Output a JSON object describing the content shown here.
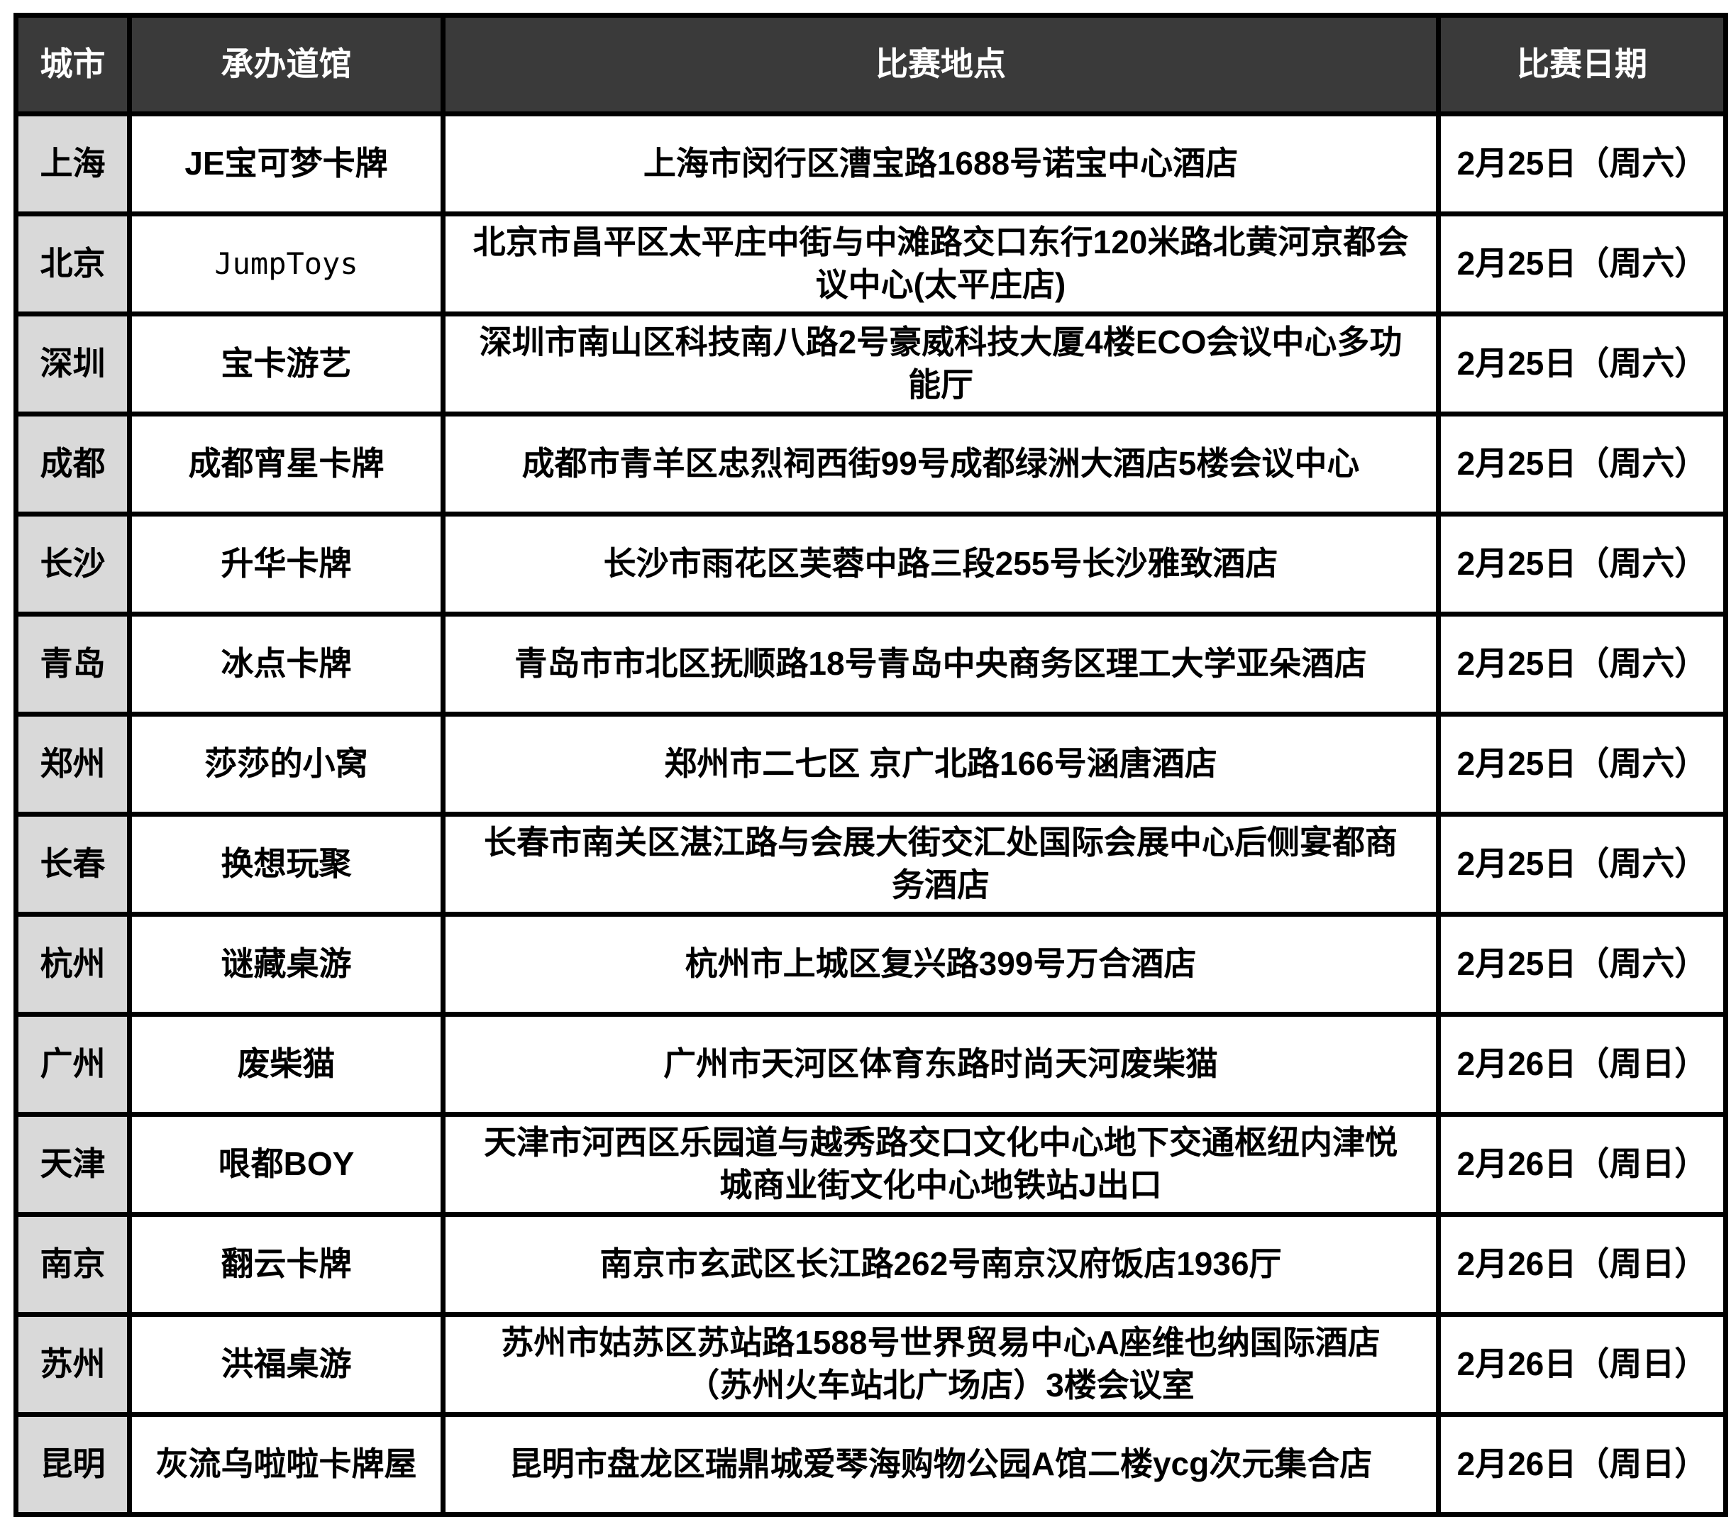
{
  "table": {
    "headers": {
      "city": "城市",
      "gym": "承办道馆",
      "location": "比赛地点",
      "date": "比赛日期"
    },
    "rows": [
      {
        "city": "上海",
        "gym": "JE宝可梦卡牌",
        "location": "上海市闵行区漕宝路1688号诺宝中心酒店",
        "date": "2月25日（周六）"
      },
      {
        "city": "北京",
        "gym": "JumpToys",
        "location": "北京市昌平区太平庄中街与中滩路交口东行120米路北黄河京都会议中心(太平庄店)",
        "date": "2月25日（周六）"
      },
      {
        "city": "深圳",
        "gym": "宝卡游艺",
        "location": "深圳市南山区科技南八路2号豪威科技大厦4楼ECO会议中心多功能厅",
        "date": "2月25日（周六）"
      },
      {
        "city": "成都",
        "gym": "成都宵星卡牌",
        "location": "成都市青羊区忠烈祠西街99号成都绿洲大酒店5楼会议中心",
        "date": "2月25日（周六）"
      },
      {
        "city": "长沙",
        "gym": "升华卡牌",
        "location": "长沙市雨花区芙蓉中路三段255号长沙雅致酒店",
        "date": "2月25日（周六）"
      },
      {
        "city": "青岛",
        "gym": "冰点卡牌",
        "location": "青岛市市北区抚顺路18号青岛中央商务区理工大学亚朵酒店",
        "date": "2月25日（周六）"
      },
      {
        "city": "郑州",
        "gym": "莎莎的小窝",
        "location": "郑州市二七区 京广北路166号涵唐酒店",
        "date": "2月25日（周六）"
      },
      {
        "city": "长春",
        "gym": "换想玩聚",
        "location": "长春市南关区湛江路与会展大街交汇处国际会展中心后侧宴都商务酒店",
        "date": "2月25日（周六）"
      },
      {
        "city": "杭州",
        "gym": "谜藏桌游",
        "location": "杭州市上城区复兴路399号万合酒店",
        "date": "2月25日（周六）"
      },
      {
        "city": "广州",
        "gym": "废柴猫",
        "location": "广州市天河区体育东路时尚天河废柴猫",
        "date": "2月26日（周日）"
      },
      {
        "city": "天津",
        "gym": "哏都BOY",
        "location": "天津市河西区乐园道与越秀路交口文化中心地下交通枢纽内津悦城商业街文化中心地铁站J出口",
        "date": "2月26日（周日）"
      },
      {
        "city": "南京",
        "gym": "翻云卡牌",
        "location": "南京市玄武区长江路262号南京汉府饭店1936厅",
        "date": "2月26日（周日）"
      },
      {
        "city": "苏州",
        "gym": "洪福桌游",
        "location": "苏州市姑苏区苏站路1588号世界贸易中心A座维也纳国际酒店（苏州火车站北广场店）3楼会议室",
        "date": "2月26日（周日）"
      },
      {
        "city": "昆明",
        "gym": "灰流乌啦啦卡牌屋",
        "location": "昆明市盘龙区瑞鼎城爱琴海购物公园A馆二楼ycg次元集合店",
        "date": "2月26日（周日）"
      }
    ]
  }
}
